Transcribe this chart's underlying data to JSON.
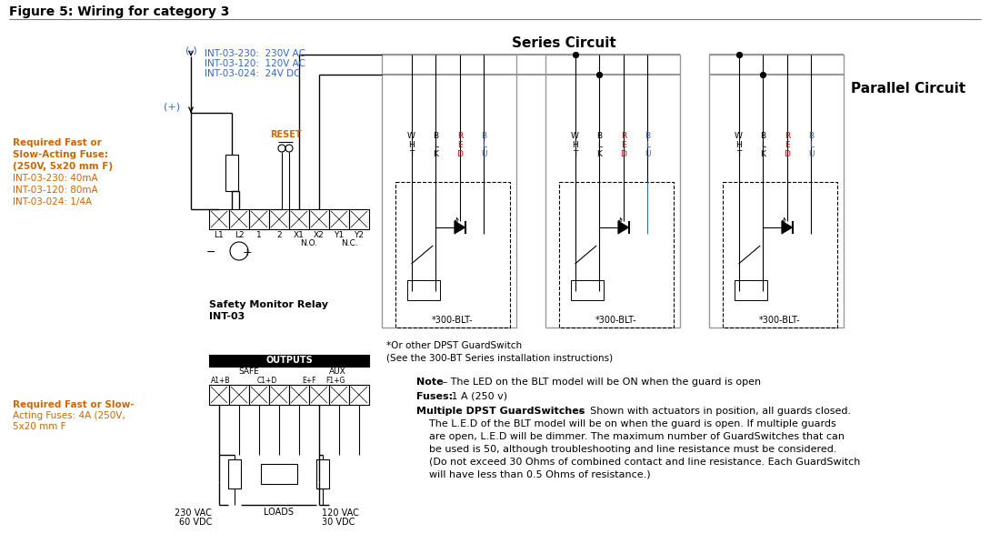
{
  "title": "Figure 5: Wiring for category 3",
  "bg_color": "#ffffff",
  "blue_color": "#3366cc",
  "orange_color": "#cc6600",
  "red_color": "#cc0000",
  "purple_color": "#880088",
  "gray_wire": "#999999",
  "series_label": "Series Circuit",
  "parallel_label": "Parallel Circuit",
  "relay_label1": "Safety Monitor Relay",
  "relay_label2": "INT-03",
  "outputs_label": "OUTPUTS",
  "safe_label": "SAFE",
  "aux_label": "AUX",
  "reset_label": "RESET",
  "minus_label": "(-)",
  "plus_label": "(+)",
  "supply_lines": [
    "INT-03-230:  230V AC",
    "INT-03-120:  120V AC",
    "INT-03-024:  24V DC"
  ],
  "fuse_lines": [
    "Required Fast or",
    "Slow-Acting Fuse:",
    "(250V, 5x20 mm F)",
    "INT-03-230: 40mA",
    "INT-03-120: 80mA",
    "INT-03-024: 1/4A"
  ],
  "output_fuse_lines": [
    "Required Fast or Slow-",
    "Acting Fuses: 4A (250V,",
    "5x20 mm F"
  ],
  "terminal_labels": [
    "L1",
    "L2",
    "1",
    "2",
    "X1",
    "X2",
    "Y1",
    "Y2"
  ],
  "no_label": "N.O.",
  "nc_label": "N.C.",
  "switch_name": "*300-BLT-",
  "or_other": "*Or other DPST GuardSwitch",
  "see_300": "(See the 300-BT Series installation instructions)",
  "volt_left1": "230 VAC",
  "volt_left2": "60 VDC",
  "volt_right1": "120 VAC",
  "volt_right2": "30 VDC",
  "loads": "LOADS",
  "note_bold": "Note",
  "note_dash": " – ",
  "note_rest": "The LED on the BLT model will be ON when the guard is open",
  "fuses_bold": "Fuses:",
  "fuses_rest": " 1 A (250 v)",
  "multi_bold": "Multiple DPST GuardSwitches",
  "multi_dash": " – ",
  "multi_rest": " Shown with actuators in position, all guards closed.",
  "multi_line2": "    The L.E.D of the BLT model will be on when the guard is open. If multiple guards",
  "multi_line3": "    are open, L.E.D will be dimmer. The maximum number of GuardSwitches that can",
  "multi_line4": "    be used is 50, although troubleshooting and line resistance must be considered.",
  "multi_line5": "    (Do not exceed 30 Ohms of combined contact and line resistance. Each GuardSwitch",
  "multi_line6": "    will have less than 0.5 Ohms of resistance.)",
  "wire_labels_wht": [
    "W",
    "H",
    "T"
  ],
  "wire_labels_blk": [
    "B",
    "L",
    "K"
  ],
  "wire_labels_red": [
    "R",
    "E",
    "D"
  ],
  "wire_labels_blu": [
    "B",
    "L",
    "U"
  ],
  "safe_sub1": "A1+B",
  "safe_sub2": "C1+D",
  "aux_sub1": "E+F",
  "aux_sub2": "F1+G"
}
